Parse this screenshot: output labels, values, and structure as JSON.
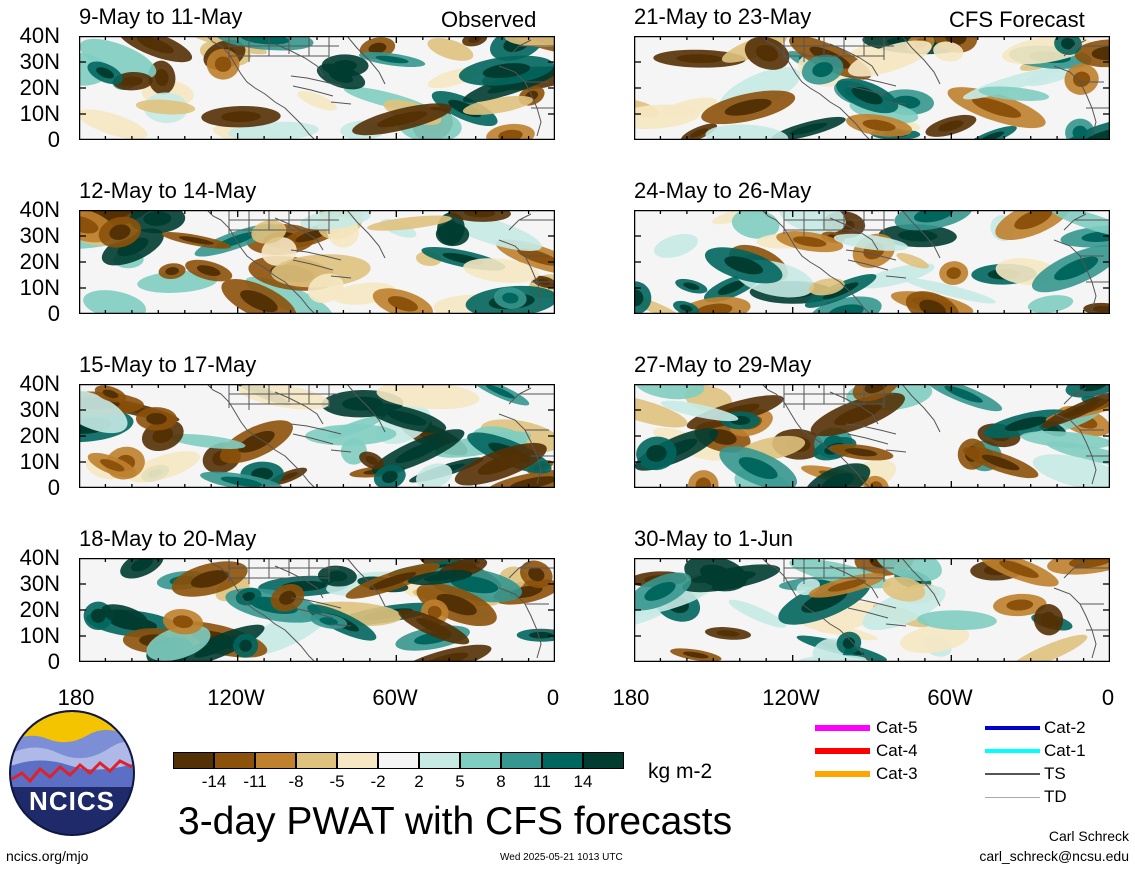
{
  "corner_labels": {
    "left": "Observed",
    "right": "CFS Forecast"
  },
  "panels": [
    {
      "title": "9-May to 11-May"
    },
    {
      "title": "12-May to 14-May"
    },
    {
      "title": "15-May to 17-May"
    },
    {
      "title": "18-May to 20-May"
    },
    {
      "title": "21-May to 23-May"
    },
    {
      "title": "24-May to 26-May"
    },
    {
      "title": "27-May to 29-May"
    },
    {
      "title": "30-May to 1-Jun"
    }
  ],
  "y_ticks": [
    "40N",
    "30N",
    "20N",
    "10N",
    "0"
  ],
  "x_ticks": [
    "180",
    "120W",
    "60W",
    "0"
  ],
  "colorbar": {
    "unit": "kg m-2",
    "labels": [
      "-14",
      "-11",
      "-8",
      "-5",
      "-2",
      "2",
      "5",
      "8",
      "11",
      "14"
    ],
    "colors": [
      "#543005",
      "#8c510a",
      "#bf812d",
      "#dfc27d",
      "#f6e8c3",
      "#f5f5f5",
      "#c7eae5",
      "#80cdc1",
      "#35978f",
      "#01665e",
      "#003c30"
    ]
  },
  "legend": [
    {
      "label": "Cat-5",
      "color": "#ff00ff"
    },
    {
      "label": "Cat-4",
      "color": "#ff0000"
    },
    {
      "label": "Cat-3",
      "color": "#ffa500"
    },
    {
      "label": "Cat-2",
      "color": "#0000cc"
    },
    {
      "label": "Cat-1",
      "color": "#00ffff"
    },
    {
      "label": "TS",
      "color": "#555555"
    },
    {
      "label": "TD",
      "color": "#aaaaaa"
    }
  ],
  "logo_text": "NCICS",
  "main_title": "3-day PWAT with CFS forecasts",
  "footer": {
    "url": "ncics.org/mjo",
    "timestamp": "Wed 2025-05-21 1013 UTC",
    "author": "Carl Schreck",
    "email": "carl_schreck@ncsu.edu"
  }
}
